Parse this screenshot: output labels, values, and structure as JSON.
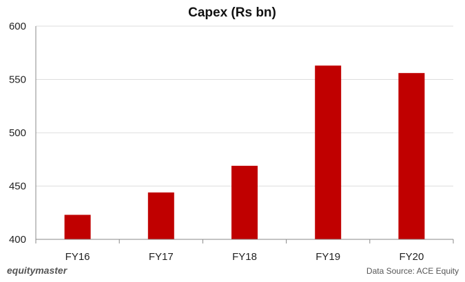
{
  "chart_data": {
    "type": "bar",
    "title": "Capex (Rs bn)",
    "categories": [
      "FY16",
      "FY17",
      "FY18",
      "FY19",
      "FY20"
    ],
    "values": [
      423,
      444,
      469,
      563,
      556
    ],
    "ylim": [
      400,
      600
    ],
    "yticks": [
      400,
      450,
      500,
      550,
      600
    ],
    "grid": true,
    "bar_color": "#c00000"
  },
  "footer": {
    "brand": "equitymaster",
    "source": "Data Source: ACE Equity"
  }
}
